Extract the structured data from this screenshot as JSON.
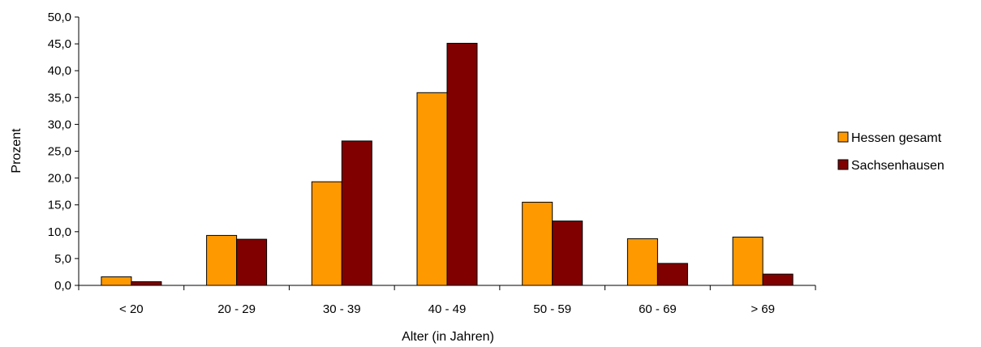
{
  "chart_data": {
    "type": "bar",
    "categories": [
      "< 20",
      "20 - 29",
      "30 - 39",
      "40 - 49",
      "50 - 59",
      "60 - 69",
      "> 69"
    ],
    "series": [
      {
        "name": "Hessen gesamt",
        "color": "#FF9900",
        "values": [
          1.6,
          9.3,
          19.3,
          35.9,
          15.5,
          8.7,
          9.0
        ]
      },
      {
        "name": "Sachsenhausen",
        "color": "#800000",
        "values": [
          0.7,
          8.6,
          26.9,
          45.1,
          12.0,
          4.1,
          2.1
        ]
      }
    ],
    "xlabel": "Alter (in Jahren)",
    "ylabel": "Prozent",
    "ylim": [
      0,
      50
    ],
    "yticks": [
      "0,0",
      "5,0",
      "10,0",
      "15,0",
      "20,0",
      "25,0",
      "30,0",
      "35,0",
      "40,0",
      "45,0",
      "50,0"
    ],
    "grid": false,
    "legend_position": "right"
  }
}
